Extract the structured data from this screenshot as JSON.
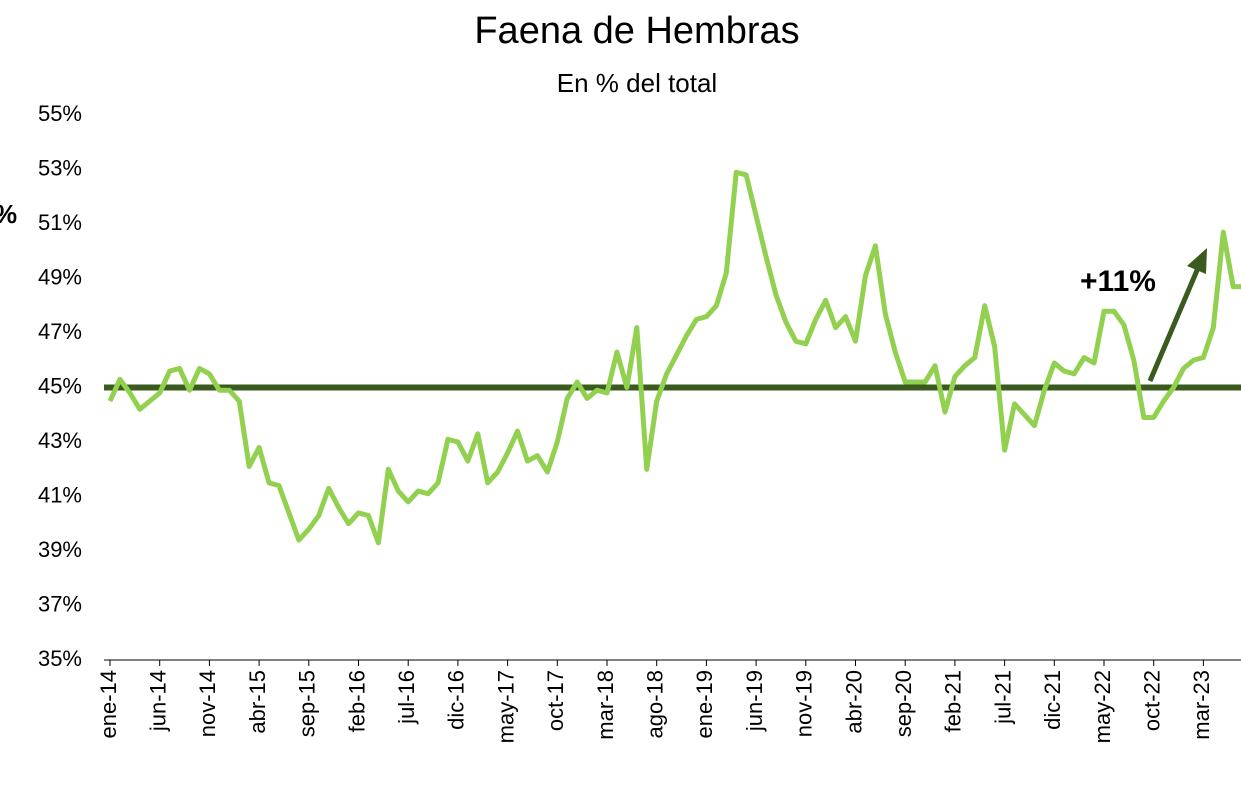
{
  "chart_data": {
    "type": "line",
    "title": "Faena de Hembras",
    "subtitle": "En % del total",
    "side_label": "%",
    "annotation": "+11%",
    "categories": [
      "ene-14",
      null,
      null,
      null,
      null,
      "jun-14",
      null,
      null,
      null,
      null,
      "nov-14",
      null,
      null,
      null,
      null,
      "abr-15",
      null,
      null,
      null,
      null,
      "sep-15",
      null,
      null,
      null,
      null,
      "feb-16",
      null,
      null,
      null,
      null,
      "jul-16",
      null,
      null,
      null,
      null,
      "dic-16",
      null,
      null,
      null,
      null,
      "may-17",
      null,
      null,
      null,
      null,
      "oct-17",
      null,
      null,
      null,
      null,
      "mar-18",
      null,
      null,
      null,
      null,
      "ago-18",
      null,
      null,
      null,
      null,
      "ene-19",
      null,
      null,
      null,
      null,
      "jun-19",
      null,
      null,
      null,
      null,
      "nov-19",
      null,
      null,
      null,
      null,
      "abr-20",
      null,
      null,
      null,
      null,
      "sep-20",
      null,
      null,
      null,
      null,
      "feb-21",
      null,
      null,
      null,
      null,
      "jul-21",
      null,
      null,
      null,
      null,
      "dic-21",
      null,
      null,
      null,
      null,
      "may-22",
      null,
      null,
      null,
      null,
      "oct-22",
      null,
      null,
      null,
      null,
      "mar-23",
      null,
      null,
      null,
      null
    ],
    "series": [
      {
        "color": "#92d050",
        "values": [
          44.5,
          45.3,
          44.8,
          44.2,
          44.5,
          44.8,
          45.6,
          45.7,
          44.9,
          45.7,
          45.5,
          44.9,
          44.9,
          44.5,
          42.1,
          42.8,
          41.5,
          41.4,
          40.4,
          39.4,
          39.8,
          40.3,
          41.3,
          40.6,
          40.0,
          40.4,
          40.3,
          39.3,
          42.0,
          41.2,
          40.8,
          41.2,
          41.1,
          41.5,
          43.1,
          43.0,
          42.3,
          43.3,
          41.5,
          41.9,
          42.6,
          43.4,
          42.3,
          42.5,
          41.9,
          43.0,
          44.6,
          45.2,
          44.6,
          44.9,
          44.8,
          46.3,
          45.0,
          47.2,
          42.0,
          44.5,
          45.5,
          46.2,
          46.9,
          47.5,
          47.6,
          48.0,
          49.2,
          52.9,
          52.8,
          51.3,
          49.8,
          48.4,
          47.4,
          46.7,
          46.6,
          47.5,
          48.2,
          47.2,
          47.6,
          46.7,
          49.1,
          50.2,
          47.7,
          46.3,
          45.2,
          45.2,
          45.2,
          45.8,
          44.1,
          45.4,
          45.8,
          46.1,
          48.0,
          46.5,
          42.7,
          44.4,
          44.0,
          43.6,
          44.9,
          45.9,
          45.6,
          45.5,
          46.1,
          45.9,
          47.8,
          47.8,
          47.3,
          46.0,
          43.9,
          43.9,
          44.5,
          45.0,
          45.7,
          46.0,
          46.1,
          47.2,
          50.7,
          48.7,
          48.7
        ]
      }
    ],
    "reference_line": {
      "value": 45,
      "color": "#3a5a1e"
    },
    "ylim": [
      35,
      55
    ],
    "yticks": [
      {
        "value": 35,
        "label": "35%"
      },
      {
        "value": 37,
        "label": "37%"
      },
      {
        "value": 39,
        "label": "39%"
      },
      {
        "value": 41,
        "label": "41%"
      },
      {
        "value": 43,
        "label": "43%"
      },
      {
        "value": 45,
        "label": "45%"
      },
      {
        "value": 47,
        "label": "47%"
      },
      {
        "value": 49,
        "label": "49%"
      },
      {
        "value": 51,
        "label": "51%"
      },
      {
        "value": 53,
        "label": "53%"
      },
      {
        "value": 55,
        "label": "55%"
      }
    ]
  }
}
